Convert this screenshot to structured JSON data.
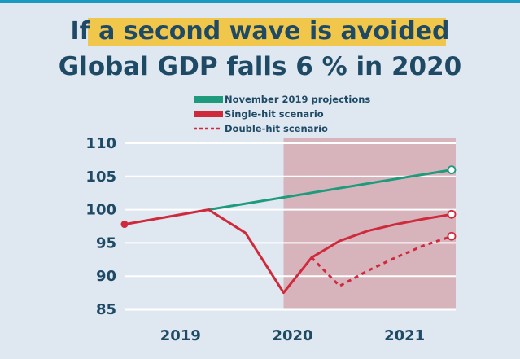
{
  "colors": {
    "background": "#dfe8f0",
    "title": "#1f4a66",
    "title_band": "#f0c74a",
    "shade": "#d6aab3",
    "green": "#1e9a7c",
    "red": "#cf2a3c",
    "grid": "#ffffff"
  },
  "chart_data": {
    "type": "line",
    "title": "If a second wave is avoided",
    "subtitle": "Global GDP falls 6 % in 2020",
    "xlabel": "",
    "ylabel": "",
    "ylim": [
      85,
      110
    ],
    "yticks": [
      110,
      105,
      100,
      95,
      90,
      85
    ],
    "xlim": [
      2019,
      2022
    ],
    "xticks": [
      {
        "label": "2019",
        "x": 2019.5
      },
      {
        "label": "2020",
        "x": 2020.5
      },
      {
        "label": "2021",
        "x": 2021.5
      }
    ],
    "grid": true,
    "legend_position": "top-center",
    "shaded_region": [
      2020.42,
      2022
    ],
    "series": [
      {
        "name": "November 2019 projections",
        "style": "solid",
        "color": "#1e9a7c",
        "x": [
          2019.75,
          2021.92
        ],
        "y": [
          100,
          106
        ],
        "end_marker": true
      },
      {
        "name": "Single-hit scenario",
        "style": "solid",
        "color": "#cf2a3c",
        "x": [
          2019,
          2019.75,
          2020.08,
          2020.42,
          2020.67,
          2020.92,
          2021.17,
          2021.42,
          2021.67,
          2021.92
        ],
        "y": [
          97.8,
          100,
          96.5,
          87.5,
          92.8,
          95.3,
          96.8,
          97.8,
          98.6,
          99.3
        ],
        "start_marker": true,
        "end_marker": true
      },
      {
        "name": "Double-hit scenario",
        "style": "dashed",
        "color": "#cf2a3c",
        "x": [
          2020.67,
          2020.92,
          2021.17,
          2021.42,
          2021.67,
          2021.92
        ],
        "y": [
          92.8,
          88.5,
          90.8,
          92.8,
          94.6,
          96.0
        ],
        "end_marker": true
      }
    ]
  }
}
